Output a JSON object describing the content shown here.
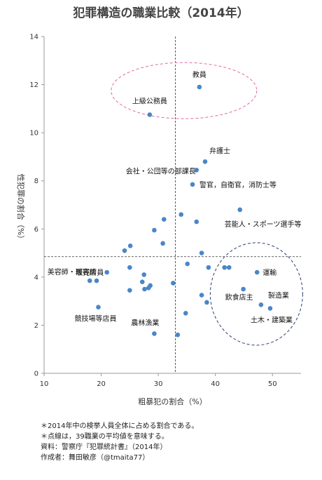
{
  "chart_data": {
    "type": "scatter",
    "title": "犯罪構造の職業比較（2014年）",
    "xlabel": "粗暴犯の割合（%）",
    "ylabel": "性犯罪の割合（%）",
    "xlim": [
      10,
      55
    ],
    "ylim": [
      0,
      14
    ],
    "xticks": [
      "10",
      "20",
      "30",
      "40",
      "50"
    ],
    "yticks": [
      "0",
      "2",
      "4",
      "6",
      "8",
      "10",
      "12",
      "14"
    ],
    "grid": false,
    "reference_lines": {
      "x": 33.0,
      "y": 4.85
    },
    "colors": {
      "marker": "#4a86c8",
      "axis": "#999999",
      "ellipse_top": "#e06aa6",
      "ellipse_bottom": "#2a3f6e"
    },
    "points": [
      {
        "x": 37.2,
        "y": 11.9,
        "label": "教員"
      },
      {
        "x": 28.5,
        "y": 10.75,
        "label": "上級公務員"
      },
      {
        "x": 38.2,
        "y": 8.8,
        "label": "弁護士"
      },
      {
        "x": 36.7,
        "y": 8.45,
        "label": "会社・公団等の部課長"
      },
      {
        "x": 36.0,
        "y": 7.85,
        "label": "警官，自衛官，消防士等"
      },
      {
        "x": 44.3,
        "y": 6.8,
        "label": "芸能人・スポーツ選手等"
      },
      {
        "x": 34.0,
        "y": 6.6,
        "label": ""
      },
      {
        "x": 31.0,
        "y": 6.4,
        "label": ""
      },
      {
        "x": 36.7,
        "y": 6.3,
        "label": ""
      },
      {
        "x": 29.3,
        "y": 5.95,
        "label": ""
      },
      {
        "x": 30.8,
        "y": 5.4,
        "label": ""
      },
      {
        "x": 25.1,
        "y": 5.3,
        "label": ""
      },
      {
        "x": 24.1,
        "y": 5.1,
        "label": ""
      },
      {
        "x": 37.6,
        "y": 5.0,
        "label": ""
      },
      {
        "x": 35.1,
        "y": 4.55,
        "label": ""
      },
      {
        "x": 38.8,
        "y": 4.4,
        "label": ""
      },
      {
        "x": 41.6,
        "y": 4.4,
        "label": ""
      },
      {
        "x": 42.4,
        "y": 4.4,
        "label": ""
      },
      {
        "x": 47.3,
        "y": 4.2,
        "label": "運輸"
      },
      {
        "x": 25.0,
        "y": 4.4,
        "label": ""
      },
      {
        "x": 21.0,
        "y": 4.2,
        "label": "美容師・理容師"
      },
      {
        "x": 27.5,
        "y": 4.1,
        "label": ""
      },
      {
        "x": 27.2,
        "y": 3.8,
        "label": ""
      },
      {
        "x": 32.6,
        "y": 3.75,
        "label": ""
      },
      {
        "x": 28.6,
        "y": 3.65,
        "label": ""
      },
      {
        "x": 28.3,
        "y": 3.55,
        "label": ""
      },
      {
        "x": 27.6,
        "y": 3.5,
        "label": ""
      },
      {
        "x": 25.0,
        "y": 3.45,
        "label": ""
      },
      {
        "x": 44.9,
        "y": 3.5,
        "label": "飲食店主"
      },
      {
        "x": 37.6,
        "y": 3.25,
        "label": ""
      },
      {
        "x": 19.2,
        "y": 3.85,
        "label": ""
      },
      {
        "x": 18.0,
        "y": 3.85,
        "label": "販売店員"
      },
      {
        "x": 38.5,
        "y": 2.95,
        "label": ""
      },
      {
        "x": 48.0,
        "y": 2.85,
        "label": "製造業"
      },
      {
        "x": 49.6,
        "y": 2.7,
        "label": "土木・建築業"
      },
      {
        "x": 19.5,
        "y": 2.75,
        "label": "競技場等店員"
      },
      {
        "x": 34.8,
        "y": 2.5,
        "label": ""
      },
      {
        "x": 29.3,
        "y": 1.65,
        "label": "農林漁業"
      },
      {
        "x": 33.4,
        "y": 1.6,
        "label": ""
      }
    ]
  },
  "notes": [
    "＊2014年中の検挙人員全体に占める割合である。",
    "＊点線は，39職業の平均値を意味する。",
    "資料：警察庁『犯罪統計書』（2014年）",
    "作成者：舞田敏彦（@tmaita77）"
  ]
}
